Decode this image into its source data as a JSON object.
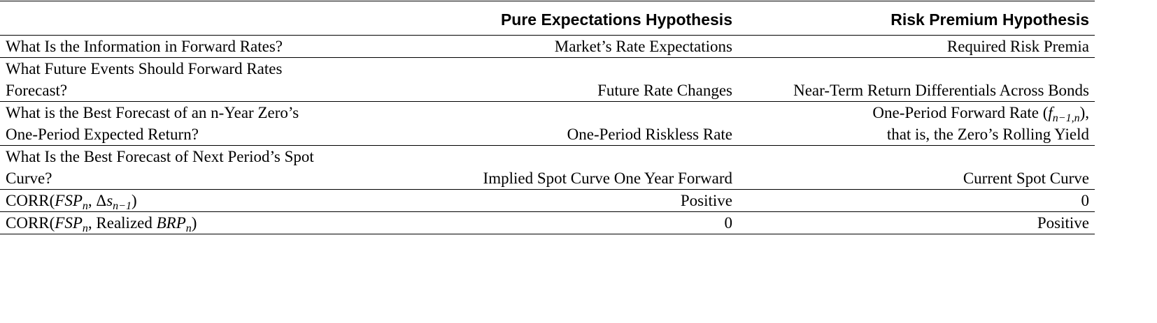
{
  "headers": {
    "col1": "",
    "col2": "Pure Expectations Hypothesis",
    "col3": "Risk Premium  Hypothesis"
  },
  "rows": [
    {
      "question_lines": [
        "What Is the Information in Forward Rates?"
      ],
      "pure": [
        "Market’s Rate Expectations"
      ],
      "risk": [
        "Required Risk Premia"
      ]
    },
    {
      "question_lines": [
        "What Future Events Should Forward Rates",
        "Forecast?"
      ],
      "pure": [
        "Future Rate Changes"
      ],
      "risk": [
        "Near-Term Return Differentials Across Bonds"
      ]
    },
    {
      "question_lines": [
        "What is the Best Forecast of an n-Year Zero’s",
        "One-Period Expected Return?"
      ],
      "pure": [
        "One-Period Riskless Rate"
      ],
      "risk_line1_prefix": "One-Period Forward Rate (",
      "risk_line1_var": "f",
      "risk_line1_sub": "n−1,n",
      "risk_line1_suffix": "),",
      "risk_line2": "that is, the Zero’s Rolling Yield"
    },
    {
      "question_lines": [
        "What Is the Best Forecast of Next Period’s Spot",
        "Curve?"
      ],
      "pure": [
        "Implied Spot Curve One Year Forward"
      ],
      "risk": [
        "Current Spot Curve"
      ]
    },
    {
      "q_prefix": "CORR(",
      "q_var1": "FSP",
      "q_sub1": "n",
      "q_sep": ", Δ",
      "q_var2": "s",
      "q_sub2": "n−1",
      "q_suffix": ")",
      "pure": [
        "Positive"
      ],
      "risk": [
        "0"
      ]
    },
    {
      "q_prefix": "CORR(",
      "q_var1": "FSP",
      "q_sub1": "n",
      "q_sep": ", Realized ",
      "q_var2": "BRP",
      "q_sub2": "n",
      "q_suffix": ")",
      "pure": [
        "0"
      ],
      "risk": [
        "Positive"
      ]
    }
  ]
}
